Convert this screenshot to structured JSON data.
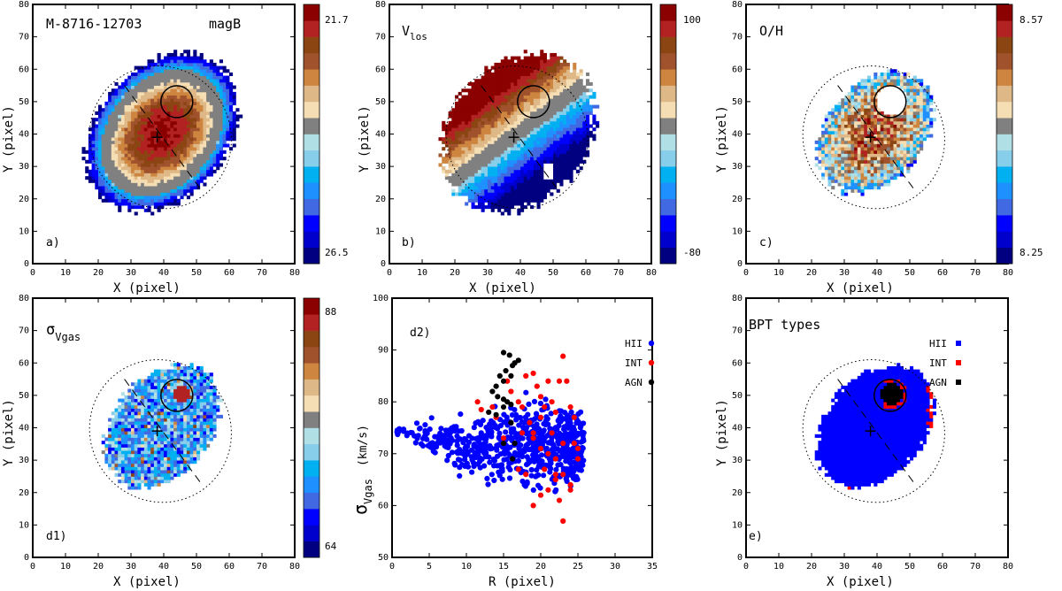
{
  "figure": {
    "panels": {
      "a": {
        "title": "M-8716-12703",
        "subtitle": "magB",
        "tag": "a)",
        "xlabel": "X  (pixel)",
        "ylabel": "Y  (pixel)",
        "cbar_top": "21.7",
        "cbar_bottom": "26.5"
      },
      "b": {
        "title": "V",
        "title_sub": "los",
        "tag": "b)",
        "xlabel": "X  (pixel)",
        "ylabel": "Y  (pixel)",
        "cbar_top": "100",
        "cbar_bottom": "-80"
      },
      "c": {
        "title": "O/H",
        "tag": "c)",
        "xlabel": "X  (pixel)",
        "ylabel": "Y  (pixel)",
        "cbar_top": "8.57",
        "cbar_bottom": "8.25"
      },
      "d1": {
        "title": "σ",
        "title_sub": "Vgas",
        "tag": "d1)",
        "xlabel": "X  (pixel)",
        "ylabel": "Y  (pixel)",
        "cbar_top": "88",
        "cbar_bottom": "64"
      },
      "d2": {
        "tag": "d2)",
        "xlabel": "R  (pixel)",
        "ylabel_main": "σ",
        "ylabel_sub": "Vgas",
        "ylabel_unit": "(km/s)",
        "legend": [
          "HII",
          "INT",
          "AGN"
        ]
      },
      "e": {
        "title": "BPT types",
        "tag": "e)",
        "xlabel": "X  (pixel)",
        "ylabel": "Y  (pixel)",
        "legend": [
          "HII",
          "INT",
          "AGN"
        ]
      }
    },
    "colormap": [
      "#000080",
      "#0000cd",
      "#0000ff",
      "#4169e1",
      "#1e90ff",
      "#00b0f0",
      "#87ceeb",
      "#b0e0e6",
      "#808080",
      "#f5deb3",
      "#deb887",
      "#cd853f",
      "#a0522d",
      "#8b4513",
      "#b22222",
      "#8b0000"
    ],
    "class_colors": {
      "HII": "#0000ff",
      "INT": "#ff0000",
      "AGN": "#000000"
    }
  },
  "chart_data": [
    {
      "type": "heatmap",
      "panel": "a",
      "title": "M-8716-12703",
      "quantity": "magB",
      "xlim": [
        0,
        80
      ],
      "ylim": [
        0,
        80
      ],
      "x_ticks": [
        0,
        10,
        20,
        30,
        40,
        50,
        60,
        70,
        80
      ],
      "y_ticks": [
        0,
        10,
        20,
        30,
        40,
        50,
        60,
        70,
        80
      ],
      "color_range": [
        21.7,
        26.5
      ],
      "center": [
        38,
        39
      ],
      "nucleus_value": 21.7,
      "edge_value": 26.5
    },
    {
      "type": "heatmap",
      "panel": "b",
      "quantity": "Vlos",
      "xlim": [
        0,
        80
      ],
      "ylim": [
        0,
        80
      ],
      "x_ticks": [
        0,
        10,
        20,
        30,
        40,
        50,
        60,
        70,
        80
      ],
      "y_ticks": [
        0,
        10,
        20,
        30,
        40,
        50,
        60,
        70,
        80
      ],
      "color_range": [
        -80,
        100
      ],
      "center": [
        38,
        39
      ]
    },
    {
      "type": "heatmap",
      "panel": "c",
      "quantity": "O/H",
      "xlim": [
        0,
        80
      ],
      "ylim": [
        0,
        80
      ],
      "x_ticks": [
        0,
        10,
        20,
        30,
        40,
        50,
        60,
        70,
        80
      ],
      "y_ticks": [
        0,
        10,
        20,
        30,
        40,
        50,
        60,
        70,
        80
      ],
      "color_range": [
        8.25,
        8.57
      ],
      "center": [
        38,
        39
      ]
    },
    {
      "type": "heatmap",
      "panel": "d1",
      "quantity": "σVgas",
      "xlim": [
        0,
        80
      ],
      "ylim": [
        0,
        80
      ],
      "x_ticks": [
        0,
        10,
        20,
        30,
        40,
        50,
        60,
        70,
        80
      ],
      "y_ticks": [
        0,
        10,
        20,
        30,
        40,
        50,
        60,
        70,
        80
      ],
      "color_range": [
        64,
        88
      ],
      "center": [
        38,
        39
      ]
    },
    {
      "type": "scatter",
      "panel": "d2",
      "xlabel": "R  (pixel)",
      "ylabel": "σVgas (km/s)",
      "xlim": [
        0,
        35
      ],
      "ylim": [
        50,
        100
      ],
      "x_ticks": [
        0,
        5,
        10,
        15,
        20,
        25,
        30,
        35
      ],
      "y_ticks": [
        50,
        60,
        70,
        80,
        90,
        100
      ],
      "legend": "top-right",
      "series": [
        {
          "name": "HII",
          "color": "#0000ff",
          "count": 700,
          "trend": [
            [
              0,
              75
            ],
            [
              5,
              73
            ],
            [
              10,
              71
            ],
            [
              15,
              72
            ],
            [
              20,
              72
            ],
            [
              25,
              71
            ]
          ],
          "spread": [
            [
              0,
              0.5
            ],
            [
              5,
              2.5
            ],
            [
              10,
              5
            ],
            [
              15,
              6.5
            ],
            [
              20,
              7
            ],
            [
              25,
              6
            ]
          ]
        },
        {
          "name": "INT",
          "color": "#ff0000",
          "points": [
            [
              11.5,
              80
            ],
            [
              12,
              78.5
            ],
            [
              13.5,
              79
            ],
            [
              14,
              77
            ],
            [
              15.5,
              84
            ],
            [
              16,
              82
            ],
            [
              17,
              80
            ],
            [
              17.5,
              79
            ],
            [
              18,
              85
            ],
            [
              19,
              85.5
            ],
            [
              19.5,
              83
            ],
            [
              20,
              81
            ],
            [
              20.5,
              79
            ],
            [
              21,
              84
            ],
            [
              21.5,
              80
            ],
            [
              22,
              78
            ],
            [
              22.5,
              84
            ],
            [
              23,
              88.8
            ],
            [
              23.5,
              84
            ],
            [
              24,
              79
            ],
            [
              24.5,
              77
            ],
            [
              19,
              73
            ],
            [
              20,
              71
            ],
            [
              21,
              70
            ],
            [
              22,
              69
            ],
            [
              23,
              66
            ],
            [
              24,
              64
            ],
            [
              25,
              69
            ],
            [
              17,
              67
            ],
            [
              18,
              66
            ],
            [
              19,
              60
            ],
            [
              20,
              62
            ],
            [
              21,
              63
            ],
            [
              22,
              65
            ],
            [
              23,
              57
            ],
            [
              22.5,
              61
            ],
            [
              24,
              63
            ],
            [
              16,
              76
            ],
            [
              17.5,
              74
            ],
            [
              18.5,
              76
            ],
            [
              20,
              77
            ],
            [
              21.5,
              74
            ],
            [
              23,
              72
            ],
            [
              24.5,
              72
            ],
            [
              25,
              71
            ],
            [
              15,
              73
            ],
            [
              19,
              74
            ],
            [
              20.5,
              67
            ],
            [
              22,
              66
            ]
          ]
        },
        {
          "name": "AGN",
          "color": "#000000",
          "points": [
            [
              13.5,
              82
            ],
            [
              14,
              83
            ],
            [
              14.5,
              85
            ],
            [
              15,
              89.5
            ],
            [
              15.3,
              86
            ],
            [
              15.8,
              89
            ],
            [
              16.2,
              87
            ],
            [
              16.5,
              87.5
            ],
            [
              17,
              88
            ],
            [
              16,
              85
            ],
            [
              15,
              84
            ],
            [
              14.2,
              81
            ],
            [
              15.5,
              80
            ],
            [
              15,
              80.5
            ],
            [
              16,
              79.5
            ],
            [
              13,
              78
            ],
            [
              14,
              77.5
            ],
            [
              15,
              79
            ],
            [
              16,
              76
            ],
            [
              16.2,
              69
            ],
            [
              16.5,
              72
            ],
            [
              15,
              72
            ]
          ]
        }
      ]
    },
    {
      "type": "heatmap",
      "panel": "e",
      "title": "BPT types",
      "xlim": [
        0,
        80
      ],
      "ylim": [
        0,
        80
      ],
      "x_ticks": [
        0,
        10,
        20,
        30,
        40,
        50,
        60,
        70,
        80
      ],
      "y_ticks": [
        0,
        10,
        20,
        30,
        40,
        50,
        60,
        70,
        80
      ],
      "categories": [
        "HII",
        "INT",
        "AGN"
      ],
      "legend": "top-right"
    }
  ]
}
